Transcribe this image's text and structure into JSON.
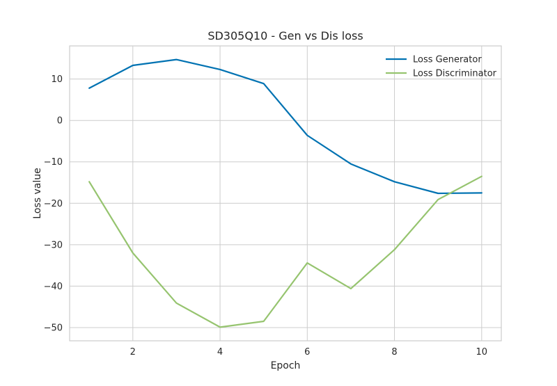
{
  "chart_data": {
    "type": "line",
    "title": "SD305Q10 - Gen vs Dis loss",
    "xlabel": "Epoch",
    "ylabel": "Loss value",
    "x": [
      1,
      2,
      3,
      4,
      5,
      6,
      7,
      8,
      9,
      10
    ],
    "xlim": [
      0.55,
      10.45
    ],
    "ylim": [
      -53.2,
      18.0
    ],
    "x_ticks": [
      2,
      4,
      6,
      8,
      10
    ],
    "y_ticks": [
      10,
      0,
      -10,
      -20,
      -30,
      -40,
      -50
    ],
    "x_tick_labels": [
      "2",
      "4",
      "6",
      "8",
      "10"
    ],
    "y_tick_labels": [
      "10",
      "0",
      "−10",
      "−20",
      "−30",
      "−40",
      "−50"
    ],
    "grid": true,
    "legend_position": "top-right",
    "series": [
      {
        "name": "Loss Generator",
        "color": "#0072b2",
        "values": [
          7.8,
          13.3,
          14.7,
          12.3,
          8.9,
          -3.6,
          -10.5,
          -14.8,
          -17.6,
          -17.5
        ]
      },
      {
        "name": "Loss Discriminator",
        "color": "#96c46f",
        "values": [
          -14.8,
          -32.0,
          -44.1,
          -49.9,
          -48.5,
          -34.4,
          -40.6,
          -31.2,
          -19.1,
          -13.5
        ]
      }
    ]
  }
}
